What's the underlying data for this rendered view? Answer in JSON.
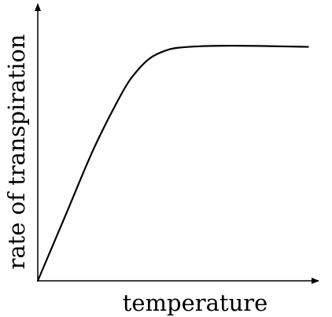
{
  "chart_data": {
    "type": "line",
    "title": "",
    "xlabel": "temperature",
    "ylabel": "rate of transpiration",
    "xlim": [
      0,
      10
    ],
    "ylim": [
      0,
      10
    ],
    "grid": false,
    "legend": "none",
    "x_ticks_shown": false,
    "y_ticks_shown": false,
    "line_color": "#000000",
    "series": [
      {
        "x": [
          0,
          1,
          2,
          3,
          3.5,
          4,
          4.5,
          5,
          6,
          7,
          8,
          9,
          9.6
        ],
        "y": [
          0,
          2.4,
          4.8,
          6.8,
          7.55,
          8.05,
          8.3,
          8.42,
          8.48,
          8.49,
          8.48,
          8.46,
          8.45
        ]
      }
    ]
  }
}
